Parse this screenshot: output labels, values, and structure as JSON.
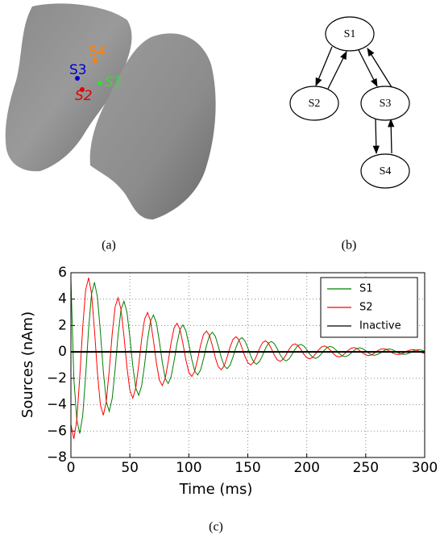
{
  "figure_a": {
    "labels": [
      "S1",
      "S2",
      "S3",
      "S4"
    ],
    "caption": "(a)"
  },
  "figure_b": {
    "nodes": [
      "S1",
      "S2",
      "S3",
      "S4"
    ],
    "caption": "(b)"
  },
  "chart_data": {
    "type": "line",
    "caption": "(c)",
    "xlabel": "Time (ms)",
    "ylabel": "Sources (nAm)",
    "x": [
      0,
      2.5,
      5,
      7.5,
      10,
      12.5,
      15,
      17.5,
      20,
      22.5,
      25,
      27.5,
      30,
      32.5,
      35,
      37.5,
      40,
      42.5,
      45,
      47.5,
      50,
      52.5,
      55,
      57.5,
      60,
      62.5,
      65,
      67.5,
      70,
      72.5,
      75,
      77.5,
      80,
      82.5,
      85,
      87.5,
      90,
      92.5,
      95,
      97.5,
      100,
      102.5,
      105,
      107.5,
      110,
      112.5,
      115,
      117.5,
      120,
      122.5,
      125,
      127.5,
      130,
      132.5,
      135,
      137.5,
      140,
      142.5,
      145,
      147.5,
      150,
      152.5,
      155,
      157.5,
      160,
      162.5,
      165,
      167.5,
      170,
      172.5,
      175,
      177.5,
      180,
      182.5,
      185,
      187.5,
      190,
      192.5,
      195,
      197.5,
      200,
      202.5,
      205,
      207.5,
      210,
      212.5,
      215,
      217.5,
      220,
      222.5,
      225,
      227.5,
      230,
      232.5,
      235,
      237.5,
      240,
      242.5,
      245,
      247.5,
      250,
      252.5,
      255,
      257.5,
      260,
      262.5,
      265,
      267.5,
      270,
      272.5,
      275,
      277.5,
      280,
      282.5,
      285,
      287.5,
      290,
      292.5,
      295,
      297.5,
      300
    ],
    "series": [
      {
        "name": "S1",
        "color": "#008000",
        "values": [
          5.5,
          -2.04,
          -5.16,
          -6.19,
          -4.84,
          -1.79,
          1.74,
          4.4,
          5.27,
          4.14,
          1.53,
          -1.48,
          -3.76,
          -4.51,
          -3.53,
          -1.3,
          1.27,
          3.21,
          3.84,
          3.02,
          1.11,
          -1.08,
          -2.74,
          -3.29,
          -2.57,
          -0.95,
          0.92,
          2.34,
          2.8,
          2.2,
          0.81,
          -0.79,
          -2.0,
          -2.4,
          -1.87,
          -0.69,
          0.67,
          1.7,
          2.04,
          1.6,
          0.59,
          -0.57,
          -1.46,
          -1.75,
          -1.36,
          -0.5,
          0.49,
          1.24,
          1.49,
          1.17,
          0.43,
          -0.42,
          -1.06,
          -1.27,
          -0.99,
          -0.37,
          0.36,
          0.9,
          1.08,
          0.85,
          0.31,
          -0.3,
          -0.77,
          -0.93,
          -0.72,
          -0.27,
          0.26,
          0.66,
          0.79,
          0.62,
          0.23,
          -0.22,
          -0.56,
          -0.68,
          -0.53,
          -0.2,
          0.19,
          0.48,
          0.57,
          0.45,
          0.17,
          -0.16,
          -0.41,
          -0.49,
          -0.38,
          -0.14,
          0.14,
          0.35,
          0.42,
          0.33,
          0.12,
          -0.12,
          -0.3,
          -0.36,
          -0.28,
          -0.1,
          0.1,
          0.25,
          0.31,
          0.24,
          0.09,
          -0.09,
          -0.22,
          -0.26,
          -0.2,
          -0.08,
          0.07,
          0.19,
          0.22,
          0.17,
          0.06,
          -0.06,
          -0.16,
          -0.19,
          -0.15,
          -0.06,
          0.05,
          0.14,
          0.16,
          0.13,
          0.05
        ]
      },
      {
        "name": "S2",
        "color": "#ff0000",
        "values": [
          -5.5,
          -6.59,
          -5.16,
          -1.91,
          1.85,
          4.69,
          5.62,
          4.41,
          1.63,
          -1.58,
          -4.01,
          -4.8,
          -3.76,
          -1.39,
          1.35,
          3.42,
          4.1,
          3.21,
          1.19,
          -1.15,
          -2.92,
          -3.5,
          -2.74,
          -1.01,
          0.98,
          2.49,
          2.98,
          2.34,
          0.87,
          -0.84,
          -2.13,
          -2.55,
          -2.0,
          -0.74,
          0.72,
          1.82,
          2.17,
          1.71,
          0.63,
          -0.61,
          -1.55,
          -1.86,
          -1.46,
          -0.54,
          0.52,
          1.32,
          1.58,
          1.24,
          0.46,
          -0.45,
          -1.13,
          -1.35,
          -1.06,
          -0.39,
          0.38,
          0.96,
          1.15,
          0.91,
          0.33,
          -0.32,
          -0.82,
          -0.99,
          -0.77,
          -0.29,
          0.28,
          0.7,
          0.84,
          0.66,
          0.24,
          -0.24,
          -0.6,
          -0.72,
          -0.56,
          -0.21,
          0.2,
          0.51,
          0.61,
          0.48,
          0.18,
          -0.17,
          -0.44,
          -0.52,
          -0.41,
          -0.15,
          0.15,
          0.37,
          0.45,
          0.35,
          0.13,
          -0.13,
          -0.32,
          -0.38,
          -0.3,
          -0.11,
          0.11,
          0.27,
          0.33,
          0.26,
          0.09,
          -0.09,
          -0.23,
          -0.28,
          -0.22,
          -0.08,
          0.08,
          0.2,
          0.24,
          0.19,
          0.07,
          -0.07,
          -0.17,
          -0.2,
          -0.16,
          -0.06,
          0.06,
          0.14,
          0.17,
          0.14,
          0.05,
          -0.05,
          -0.12
        ]
      },
      {
        "name": "Inactive",
        "color": "#000000",
        "values": [
          0,
          0,
          0,
          0,
          0,
          0,
          0,
          0,
          0,
          0,
          0,
          0,
          0,
          0,
          0,
          0,
          0,
          0,
          0,
          0,
          0,
          0,
          0,
          0,
          0,
          0,
          0,
          0,
          0,
          0,
          0,
          0,
          0,
          0,
          0,
          0,
          0,
          0,
          0,
          0,
          0,
          0,
          0,
          0,
          0,
          0,
          0,
          0,
          0,
          0,
          0,
          0,
          0,
          0,
          0,
          0,
          0,
          0,
          0,
          0,
          0,
          0,
          0,
          0,
          0,
          0,
          0,
          0,
          0,
          0,
          0,
          0,
          0,
          0,
          0,
          0,
          0,
          0,
          0,
          0,
          0,
          0,
          0,
          0,
          0,
          0,
          0,
          0,
          0,
          0,
          0,
          0,
          0,
          0,
          0,
          0,
          0,
          0,
          0,
          0,
          0,
          0,
          0,
          0,
          0,
          0,
          0,
          0,
          0,
          0,
          0,
          0,
          0,
          0,
          0,
          0,
          0,
          0,
          0,
          0,
          0
        ]
      }
    ],
    "xlim": [
      0,
      300
    ],
    "xticks": [
      0,
      50,
      100,
      150,
      200,
      250,
      300
    ],
    "ylim": [
      -8,
      6
    ],
    "yticks": [
      {
        "value": -8,
        "label": "−8"
      },
      {
        "value": -6,
        "label": "−6"
      },
      {
        "value": -4,
        "label": "−4"
      },
      {
        "value": -2,
        "label": "−2"
      },
      0,
      2,
      4,
      6
    ],
    "grid": true,
    "legend": "upper right"
  }
}
